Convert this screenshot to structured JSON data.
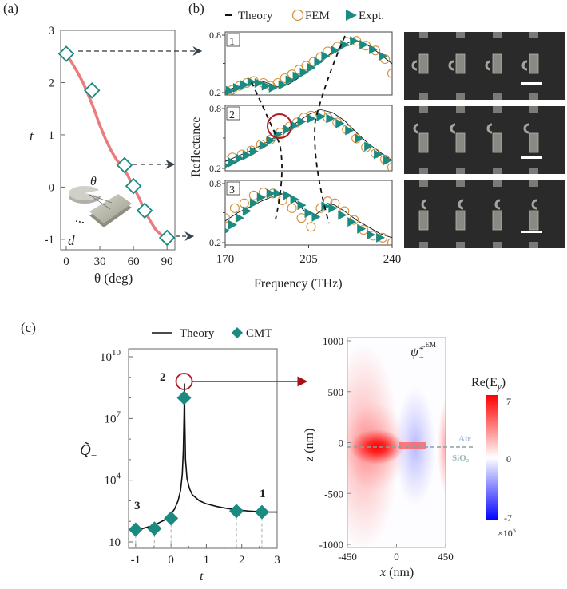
{
  "chart_data": [
    {
      "panel": "(a)",
      "type": "line",
      "xlabel": "θ (deg)",
      "ylabel": "t",
      "xlim": [
        -5,
        97
      ],
      "ylim": [
        -1.2,
        3
      ],
      "xticks": [
        0,
        30,
        60,
        90
      ],
      "yticks": [
        -1,
        0,
        1,
        2,
        3
      ],
      "inset_labels": {
        "angle": "θ",
        "gap": "d"
      },
      "curve": {
        "name": "t(θ)",
        "color": "#e8787a",
        "x": [
          0,
          5,
          10,
          15,
          20,
          25,
          30,
          35,
          40,
          45,
          50,
          55,
          60,
          65,
          70,
          75,
          80,
          85,
          90
        ],
        "y": [
          2.55,
          2.38,
          2.2,
          2.0,
          1.75,
          1.48,
          1.18,
          0.92,
          0.7,
          0.52,
          0.4,
          0.22,
          0.0,
          -0.2,
          -0.45,
          -0.65,
          -0.82,
          -0.92,
          -0.97
        ]
      },
      "markers": {
        "name": "samples",
        "color": "#1b8a80",
        "shape": "open-diamond",
        "x": [
          0,
          23,
          52,
          60,
          70,
          90
        ],
        "y": [
          2.55,
          1.85,
          0.42,
          0.02,
          -0.45,
          -0.97
        ]
      }
    },
    {
      "panel": "(b)",
      "type": "line",
      "xlabel": "Frequency (THz)",
      "ylabel": "Reflectance",
      "xlim": [
        170,
        240
      ],
      "ylim": [
        0.2,
        0.8
      ],
      "xticks": [
        170,
        205,
        240
      ],
      "yticks": [
        0.2,
        0.8
      ],
      "legend": [
        {
          "label": "Theory",
          "marker": "line",
          "color": "#111111"
        },
        {
          "label": "FEM",
          "marker": "open-circle",
          "color": "#d4913c"
        },
        {
          "label": "Expt.",
          "marker": "triangle-right",
          "color": "#1b8a80"
        }
      ],
      "subplots": [
        {
          "label": "1",
          "theory": {
            "x": [
              170,
              175,
              180,
              185,
              188,
              192,
              196,
              200,
              205,
              210,
              215,
              220,
              224,
              228,
              232,
              236,
              240
            ],
            "y": [
              0.22,
              0.26,
              0.29,
              0.32,
              0.3,
              0.26,
              0.28,
              0.34,
              0.43,
              0.53,
              0.62,
              0.7,
              0.75,
              0.72,
              0.66,
              0.58,
              0.5
            ]
          },
          "fem": {
            "x": [
              170,
              173,
              176,
              179,
              182,
              186,
              189,
              192,
              195,
              198,
              201,
              204,
              207,
              210,
              213,
              217,
              221,
              225,
              229,
              233,
              237,
              240
            ],
            "y": [
              0.2,
              0.23,
              0.27,
              0.3,
              0.32,
              0.3,
              0.27,
              0.3,
              0.35,
              0.39,
              0.44,
              0.48,
              0.52,
              0.57,
              0.63,
              0.68,
              0.73,
              0.74,
              0.69,
              0.64,
              0.55,
              0.4
            ]
          },
          "expt": {
            "x": [
              170,
              172,
              175,
              178,
              181,
              184,
              187,
              190,
              194,
              197,
              200,
              203,
              206,
              209,
              212,
              216,
              220,
              224,
              228,
              232,
              236
            ],
            "y": [
              0.2,
              0.22,
              0.25,
              0.28,
              0.31,
              0.3,
              0.27,
              0.25,
              0.28,
              0.33,
              0.37,
              0.41,
              0.46,
              0.52,
              0.58,
              0.64,
              0.7,
              0.74,
              0.7,
              0.65,
              0.58
            ]
          }
        },
        {
          "label": "2",
          "theory": {
            "x": [
              170,
              175,
              180,
              185,
              190,
              195,
              200,
              205,
              210,
              215,
              220,
              225,
              230,
              235,
              240
            ],
            "y": [
              0.27,
              0.32,
              0.37,
              0.43,
              0.5,
              0.58,
              0.66,
              0.74,
              0.79,
              0.76,
              0.68,
              0.56,
              0.45,
              0.36,
              0.28
            ]
          },
          "fem": {
            "x": [
              170,
              173,
              177,
              181,
              185,
              189,
              193,
              197,
              200,
              203,
              206,
              210,
              213,
              217,
              221,
              225,
              229,
              233,
              237,
              240
            ],
            "y": [
              0.28,
              0.31,
              0.34,
              0.38,
              0.44,
              0.49,
              0.56,
              0.62,
              0.66,
              0.71,
              0.73,
              0.75,
              0.71,
              0.66,
              0.59,
              0.5,
              0.41,
              0.35,
              0.29,
              0.21
            ]
          },
          "expt": {
            "x": [
              170,
              173,
              176,
              179,
              182,
              186,
              189,
              192,
              196,
              199,
              202,
              206,
              210,
              214,
              218,
              222,
              226,
              230,
              234,
              238
            ],
            "y": [
              0.23,
              0.26,
              0.3,
              0.33,
              0.37,
              0.43,
              0.48,
              0.54,
              0.59,
              0.63,
              0.67,
              0.7,
              0.72,
              0.7,
              0.65,
              0.58,
              0.5,
              0.42,
              0.34,
              0.28
            ]
          }
        },
        {
          "label": "3",
          "theory": {
            "x": [
              170,
              175,
              180,
              185,
              190,
              195,
              198,
              201,
              204,
              207,
              210,
              213,
              216,
              220,
              225,
              230,
              235,
              240
            ],
            "y": [
              0.42,
              0.5,
              0.56,
              0.62,
              0.67,
              0.7,
              0.66,
              0.58,
              0.5,
              0.47,
              0.52,
              0.6,
              0.58,
              0.52,
              0.43,
              0.36,
              0.29,
              0.25
            ]
          },
          "fem": {
            "x": [
              170,
              174,
              178,
              182,
              186,
              190,
              194,
              198,
              202,
              206,
              210,
              213,
              216,
              220,
              224,
              228,
              232,
              236,
              240
            ],
            "y": [
              0.45,
              0.55,
              0.6,
              0.68,
              0.71,
              0.7,
              0.63,
              0.55,
              0.45,
              0.36,
              0.55,
              0.62,
              0.6,
              0.52,
              0.43,
              0.33,
              0.27,
              0.25,
              0.2
            ]
          },
          "expt": {
            "x": [
              170,
              173,
              176,
              179,
              182,
              185,
              189,
              192,
              196,
              199,
              202,
              205,
              208,
              212,
              215,
              219,
              223,
              227,
              231,
              235
            ],
            "y": [
              0.32,
              0.38,
              0.45,
              0.52,
              0.6,
              0.66,
              0.7,
              0.7,
              0.68,
              0.64,
              0.58,
              0.5,
              0.46,
              0.57,
              0.55,
              0.48,
              0.41,
              0.34,
              0.28,
              0.25
            ]
          }
        }
      ],
      "sem_images": {
        "count": 3,
        "scale_bar": true
      }
    },
    {
      "panel": "(c)",
      "type": "line",
      "xlabel": "t",
      "ylabel": "Q̃₋",
      "yscale": "log",
      "xlim": [
        -1.2,
        3
      ],
      "ylim": [
        10,
        10000000000
      ],
      "xticks": [
        -1,
        0,
        1,
        2,
        3
      ],
      "yticks": [
        10,
        10000,
        10000000,
        10000000000
      ],
      "ytick_labels": [
        {
          "base": "10",
          "exp": ""
        },
        {
          "base": "10",
          "exp": "4"
        },
        {
          "base": "10",
          "exp": "7"
        },
        {
          "base": "10",
          "exp": "10"
        }
      ],
      "legend": [
        {
          "label": "Theory",
          "marker": "line",
          "color": "#111111"
        },
        {
          "label": "CMT",
          "marker": "filled-diamond",
          "color": "#1b8a80"
        }
      ],
      "annotations": [
        "3",
        "2",
        "1"
      ],
      "theory_log10": {
        "x": [
          -1.1,
          -1.0,
          -0.8,
          -0.6,
          -0.4,
          -0.2,
          0.0,
          0.1,
          0.2,
          0.27,
          0.32,
          0.35,
          0.37,
          0.38,
          0.39,
          0.41,
          0.45,
          0.52,
          0.6,
          0.8,
          1.0,
          1.3,
          1.6,
          1.9,
          2.2,
          2.5,
          2.8,
          3.0
        ],
        "y": [
          1.5,
          1.55,
          1.65,
          1.75,
          1.88,
          2.05,
          2.35,
          2.6,
          3.0,
          3.5,
          4.3,
          5.5,
          7.2,
          8.7,
          7.0,
          5.0,
          4.1,
          3.6,
          3.3,
          3.0,
          2.85,
          2.72,
          2.62,
          2.55,
          2.5,
          2.47,
          2.45,
          2.45
        ]
      },
      "cmt_points": {
        "x": [
          -1.0,
          -0.47,
          0.0,
          0.37,
          1.85,
          2.57
        ],
        "log10_y": [
          1.6,
          1.65,
          2.15,
          8.0,
          2.5,
          2.45
        ]
      },
      "highlight": {
        "x": 0.37,
        "log10_y": 8.8
      }
    },
    {
      "panel": "(c) field map",
      "type": "heatmap",
      "title": "ψ̃₋^LEM",
      "xlabel": "x (nm)",
      "ylabel": "z (nm)",
      "xlim": [
        -450,
        450
      ],
      "ylim": [
        -1000,
        1000
      ],
      "xticks": [
        -450,
        0,
        450
      ],
      "yticks": [
        -1000,
        -500,
        0,
        500,
        1000
      ],
      "colorbar": {
        "label": "Re(E_y)",
        "min": -7,
        "max": 7,
        "ticks": [
          7,
          0,
          -7
        ],
        "multiplier": "×10^6",
        "cmap": [
          "#0000ff",
          "#ffffff",
          "#ff0000"
        ]
      },
      "interface_labels": {
        "upper": "Air",
        "lower": "SiO₂"
      }
    }
  ],
  "labels": {
    "panel_a": "(a)",
    "panel_b": "(b)",
    "panel_c": "(c)",
    "legend_b_theory": "Theory",
    "legend_b_fem": "FEM",
    "legend_b_expt": "Expt.",
    "legend_c_theory": "Theory",
    "legend_c_cmt": "CMT",
    "refl_label": "Reflectance",
    "freq_label": "Frequency (THz)",
    "theta_axis": "θ (deg)",
    "t_axis": "t",
    "theta_inset": "θ",
    "d_inset": "d",
    "air": "Air",
    "sio2": "SiO₂",
    "re_ey": "Re(E",
    "re_ey_sub": "y",
    "re_ey_close": ")",
    "mult": "×10",
    "mult_exp": "6",
    "psi": "ψ̃",
    "psi_sub": "−",
    "psi_sup": "LEM",
    "z_axis": "z",
    "z_unit": " (nm)",
    "x_axis": "x",
    "x_unit": " (nm)",
    "q_axis": "Q̃",
    "q_sub": "−"
  }
}
